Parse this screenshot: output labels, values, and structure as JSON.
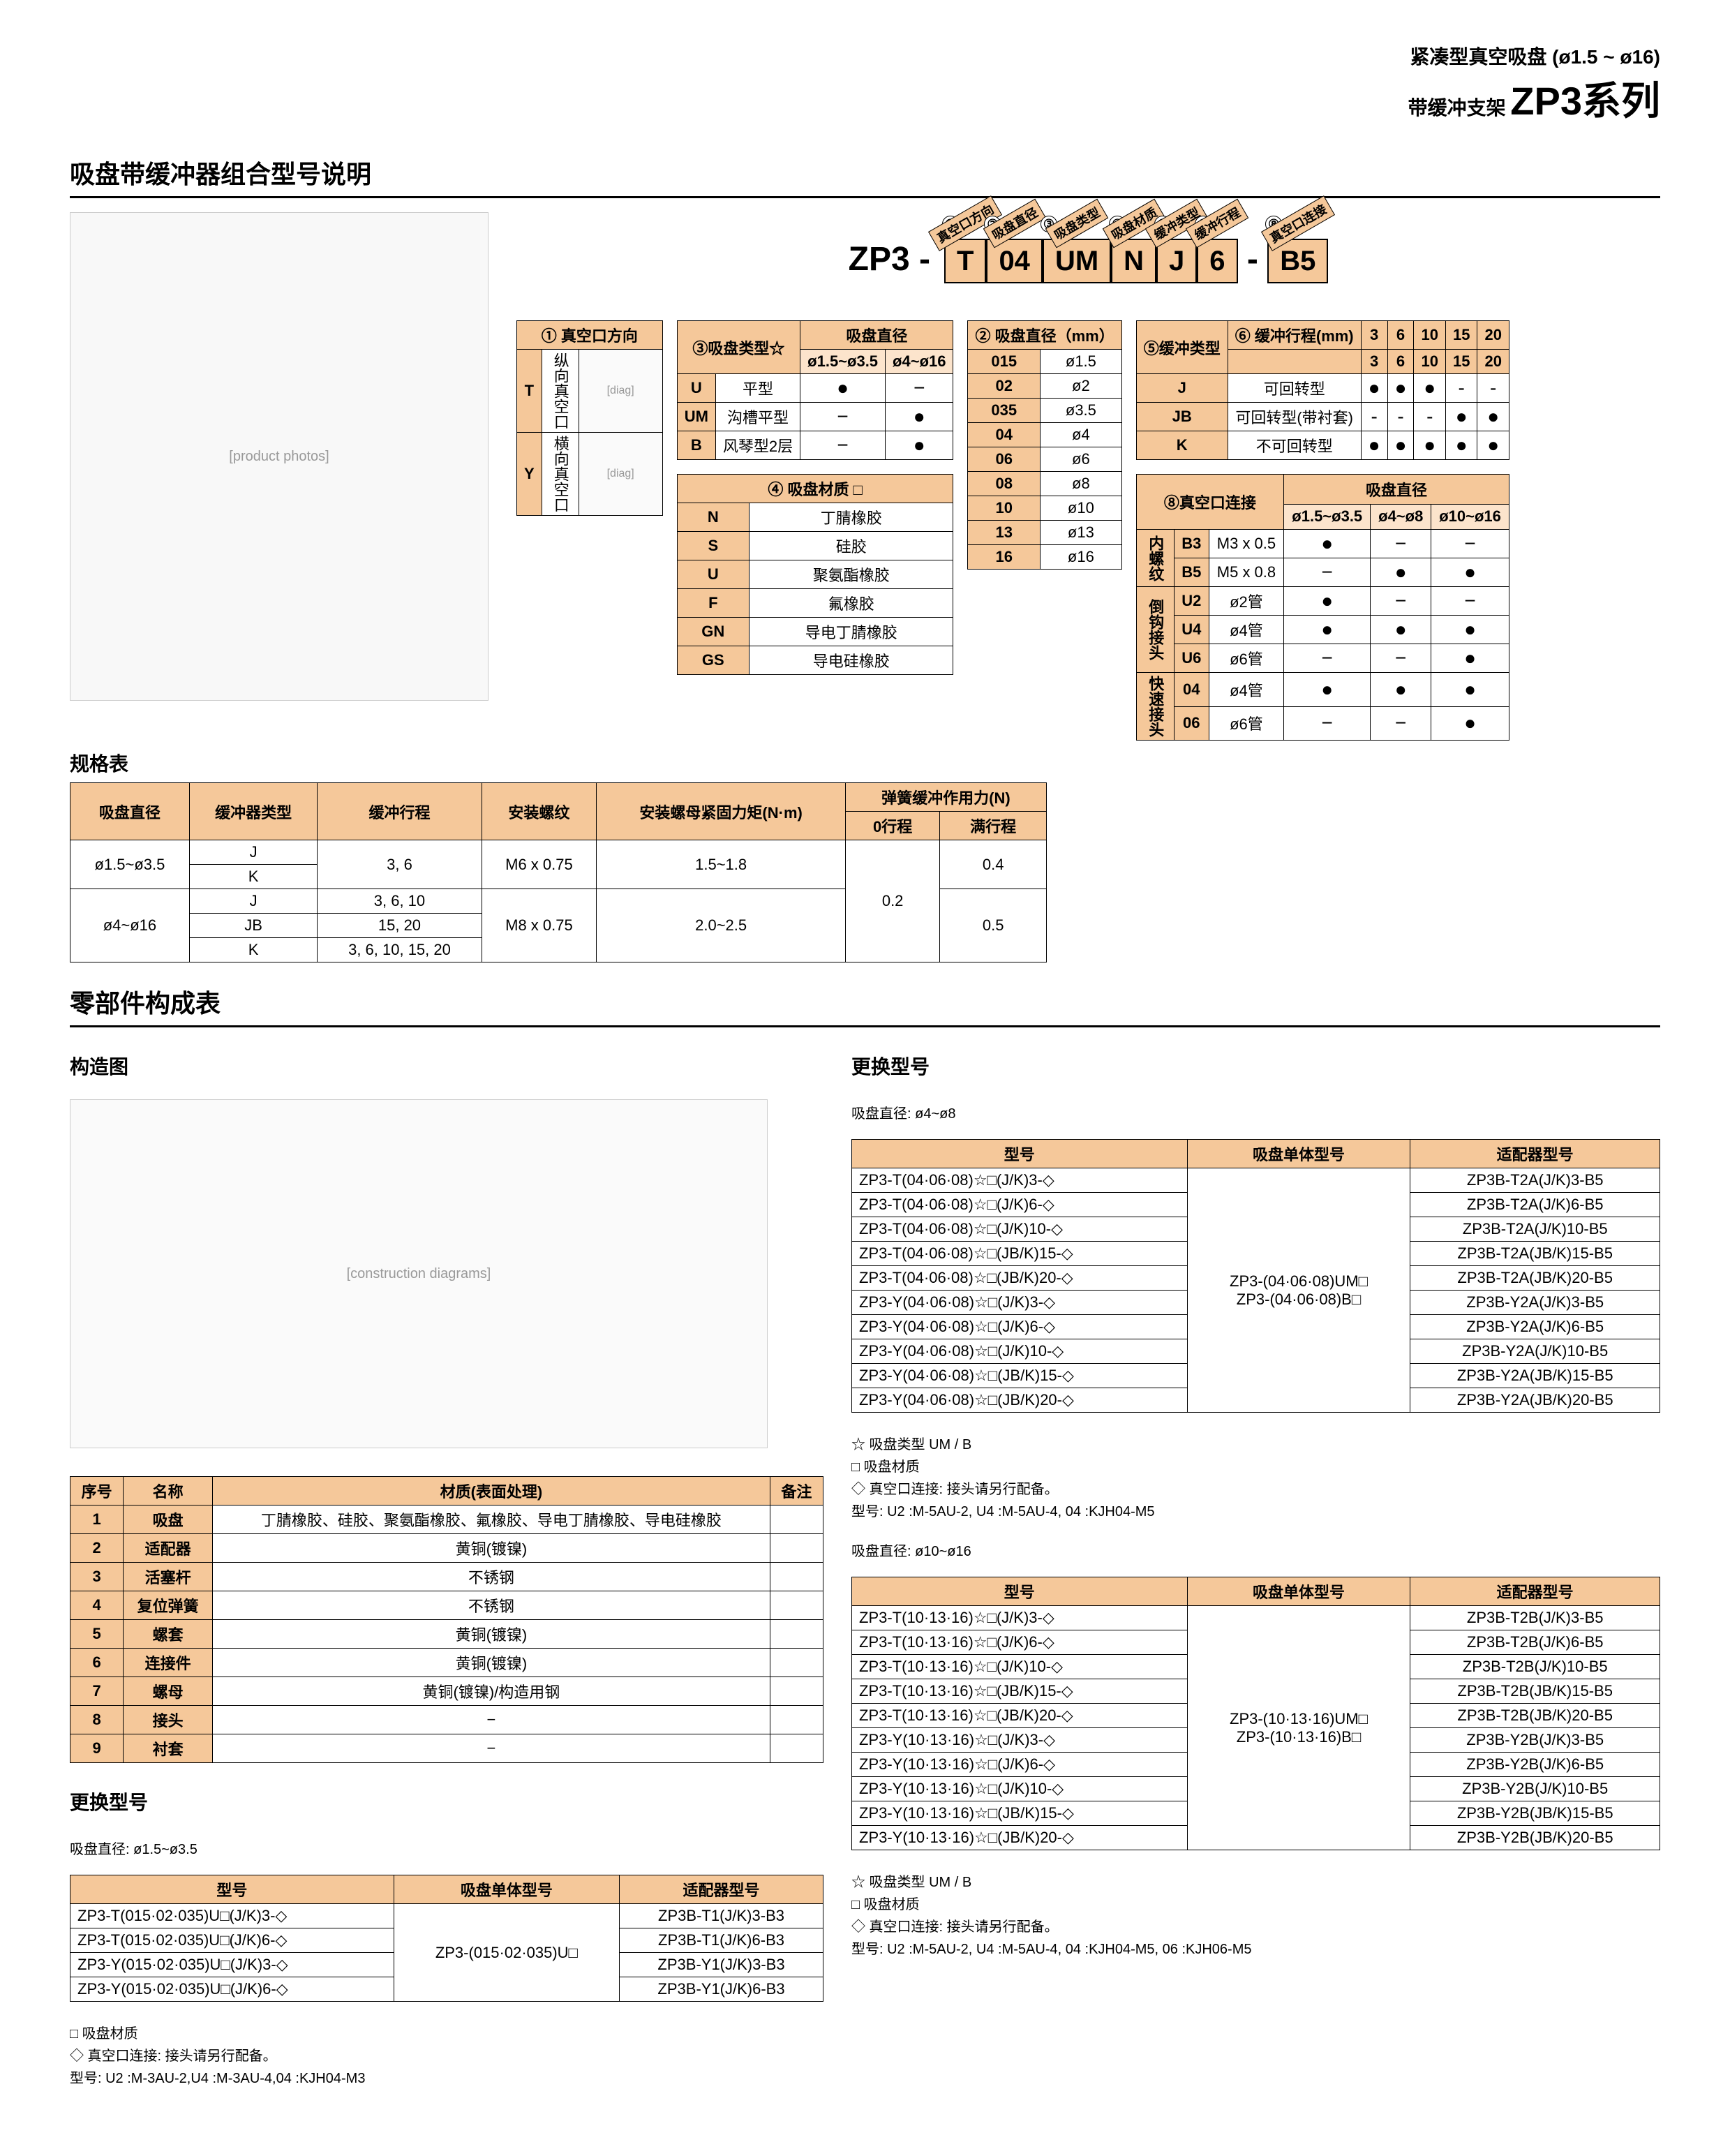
{
  "header": {
    "sub": "紧凑型真空吸盘 (ø1.5 ~ ø16)",
    "sub2": "带缓冲支架",
    "main": "ZP3系列"
  },
  "sec1": {
    "title": "吸盘带缓冲器组合型号说明"
  },
  "pn": {
    "prefix": "ZP3 -",
    "parts": [
      {
        "num": "①",
        "label": "真空口方向",
        "val": "T"
      },
      {
        "num": "②",
        "label": "吸盘直径",
        "val": "04"
      },
      {
        "num": "③",
        "label": "吸盘类型",
        "val": "UM"
      },
      {
        "num": "④",
        "label": "吸盘材质",
        "val": "N"
      },
      {
        "num": "⑤",
        "label": "缓冲类型",
        "val": "J"
      },
      {
        "num": "⑥",
        "label": "缓冲行程",
        "val": "6"
      },
      {
        "num": "⑧",
        "label": "真空口连接",
        "val": "B5"
      }
    ],
    "suffix": "-"
  },
  "t1": {
    "title": "① 真空口方向",
    "rows": [
      {
        "code": "T",
        "desc": "纵向真空口"
      },
      {
        "code": "Y",
        "desc": "横向真空口"
      }
    ]
  },
  "t3": {
    "title": "③吸盘类型☆",
    "cols": [
      "ø1.5~ø3.5",
      "ø4~ø16"
    ],
    "rows": [
      {
        "code": "U",
        "name": "平型",
        "v": [
          "●",
          "−"
        ]
      },
      {
        "code": "UM",
        "name": "沟槽平型",
        "v": [
          "−",
          "●"
        ]
      },
      {
        "code": "B",
        "name": "风琴型2层",
        "v": [
          "−",
          "●"
        ]
      }
    ]
  },
  "t4": {
    "title": "④ 吸盘材质 □",
    "rows": [
      {
        "code": "N",
        "name": "丁腈橡胶"
      },
      {
        "code": "S",
        "name": "硅胶"
      },
      {
        "code": "U",
        "name": "聚氨酯橡胶"
      },
      {
        "code": "F",
        "name": "氟橡胶"
      },
      {
        "code": "GN",
        "name": "导电丁腈橡胶"
      },
      {
        "code": "GS",
        "name": "导电硅橡胶"
      }
    ]
  },
  "t2": {
    "title": "② 吸盘直径（mm）",
    "rows": [
      {
        "code": "015",
        "val": "ø1.5"
      },
      {
        "code": "02",
        "val": "ø2"
      },
      {
        "code": "035",
        "val": "ø3.5"
      },
      {
        "code": "04",
        "val": "ø4"
      },
      {
        "code": "06",
        "val": "ø6"
      },
      {
        "code": "08",
        "val": "ø8"
      },
      {
        "code": "10",
        "val": "ø10"
      },
      {
        "code": "13",
        "val": "ø13"
      },
      {
        "code": "16",
        "val": "ø16"
      }
    ]
  },
  "t56": {
    "title5": "⑤缓冲类型",
    "title6": "⑥ 缓冲行程(mm)",
    "strokes": [
      "3",
      "6",
      "10",
      "15",
      "20"
    ],
    "rows": [
      {
        "code": "J",
        "name": "可回转型",
        "v": [
          "●",
          "●",
          "●",
          "-",
          "-"
        ]
      },
      {
        "code": "JB",
        "name": "可回转型(带衬套)",
        "v": [
          "-",
          "-",
          "-",
          "●",
          "●"
        ]
      },
      {
        "code": "K",
        "name": "不可回转型",
        "v": [
          "●",
          "●",
          "●",
          "●",
          "●"
        ]
      }
    ]
  },
  "t8": {
    "title": "⑧真空口连接",
    "cols": [
      "ø1.5~ø3.5",
      "ø4~ø8",
      "ø10~ø16"
    ],
    "groups": [
      {
        "g": "内螺纹",
        "rows": [
          {
            "code": "B3",
            "name": "M3 x 0.5",
            "v": [
              "●",
              "−",
              "−"
            ]
          },
          {
            "code": "B5",
            "name": "M5 x 0.8",
            "v": [
              "−",
              "●",
              "●"
            ]
          }
        ]
      },
      {
        "g": "倒钩接头",
        "rows": [
          {
            "code": "U2",
            "name": "ø2管",
            "v": [
              "●",
              "−",
              "−"
            ]
          },
          {
            "code": "U4",
            "name": "ø4管",
            "v": [
              "●",
              "●",
              "●"
            ]
          },
          {
            "code": "U6",
            "name": "ø6管",
            "v": [
              "−",
              "−",
              "●"
            ]
          }
        ]
      },
      {
        "g": "快速接头",
        "rows": [
          {
            "code": "04",
            "name": "ø4管",
            "v": [
              "●",
              "●",
              "●"
            ]
          },
          {
            "code": "06",
            "name": "ø6管",
            "v": [
              "−",
              "−",
              "●"
            ]
          }
        ]
      }
    ]
  },
  "spec": {
    "title": "规格表",
    "headers": [
      "吸盘直径",
      "缓冲器类型",
      "缓冲行程",
      "安装螺纹",
      "安装螺母紧固力矩(N·m)",
      "弹簧缓冲作用力(N) 0行程",
      "满行程"
    ],
    "rows": [
      {
        "dia": "ø1.5~ø3.5",
        "type": "J",
        "stroke": "3, 6",
        "thread": "M6 x 0.75",
        "torque": "1.5~1.8",
        "f0": "0.2",
        "ff": "0.4"
      },
      {
        "dia": "",
        "type": "K",
        "stroke": "",
        "thread": "",
        "torque": "",
        "f0": "",
        "ff": ""
      },
      {
        "dia": "ø4~ø16",
        "type": "J",
        "stroke": "3, 6, 10",
        "thread": "M8 x 0.75",
        "torque": "2.0~2.5",
        "f0": "",
        "ff": "0.5"
      },
      {
        "dia": "",
        "type": "JB",
        "stroke": "15, 20",
        "thread": "",
        "torque": "",
        "f0": "",
        "ff": ""
      },
      {
        "dia": "",
        "type": "K",
        "stroke": "3, 6, 10, 15, 20",
        "thread": "",
        "torque": "",
        "f0": "",
        "ff": ""
      }
    ]
  },
  "parts": {
    "title": "零部件构成表",
    "sub": "构造图",
    "headers": [
      "序号",
      "名称",
      "材质(表面处理)",
      "备注"
    ],
    "rows": [
      {
        "no": "1",
        "name": "吸盘",
        "mat": "丁腈橡胶、硅胶、聚氨酯橡胶、氟橡胶、导电丁腈橡胶、导电硅橡胶",
        "note": ""
      },
      {
        "no": "2",
        "name": "适配器",
        "mat": "黄铜(镀镍)",
        "note": ""
      },
      {
        "no": "3",
        "name": "活塞杆",
        "mat": "不锈钢",
        "note": ""
      },
      {
        "no": "4",
        "name": "复位弹簧",
        "mat": "不锈钢",
        "note": ""
      },
      {
        "no": "5",
        "name": "螺套",
        "mat": "黄铜(镀镍)",
        "note": ""
      },
      {
        "no": "6",
        "name": "连接件",
        "mat": "黄铜(镀镍)",
        "note": ""
      },
      {
        "no": "7",
        "name": "螺母",
        "mat": "黄铜(镀镍)/构造用钢",
        "note": ""
      },
      {
        "no": "8",
        "name": "接头",
        "mat": "−",
        "note": ""
      },
      {
        "no": "9",
        "name": "衬套",
        "mat": "−",
        "note": ""
      }
    ]
  },
  "repl1": {
    "title": "更换型号",
    "sub": "吸盘直径: ø1.5~ø3.5",
    "headers": [
      "型号",
      "吸盘单体型号",
      "适配器型号"
    ],
    "single": "ZP3-(015·02·035)U□",
    "rows": [
      {
        "m": "ZP3-T(015·02·035)U□(J/K)3-◇",
        "a": "ZP3B-T1(J/K)3-B3"
      },
      {
        "m": "ZP3-T(015·02·035)U□(J/K)6-◇",
        "a": "ZP3B-T1(J/K)6-B3"
      },
      {
        "m": "ZP3-Y(015·02·035)U□(J/K)3-◇",
        "a": "ZP3B-Y1(J/K)3-B3"
      },
      {
        "m": "ZP3-Y(015·02·035)U□(J/K)6-◇",
        "a": "ZP3B-Y1(J/K)6-B3"
      }
    ],
    "notes": [
      "□ 吸盘材质",
      "◇ 真空口连接: 接头请另行配备。",
      "型号: U2 :M-3AU-2,U4 :M-3AU-4,04 :KJH04-M3"
    ]
  },
  "repl2": {
    "title": "更换型号",
    "sub": "吸盘直径: ø4~ø8",
    "headers": [
      "型号",
      "吸盘单体型号",
      "适配器型号"
    ],
    "single": [
      "ZP3-(04·06·08)UM□",
      "ZP3-(04·06·08)B□"
    ],
    "rows": [
      {
        "m": "ZP3-T(04·06·08)☆□(J/K)3-◇",
        "a": "ZP3B-T2A(J/K)3-B5"
      },
      {
        "m": "ZP3-T(04·06·08)☆□(J/K)6-◇",
        "a": "ZP3B-T2A(J/K)6-B5"
      },
      {
        "m": "ZP3-T(04·06·08)☆□(J/K)10-◇",
        "a": "ZP3B-T2A(J/K)10-B5"
      },
      {
        "m": "ZP3-T(04·06·08)☆□(JB/K)15-◇",
        "a": "ZP3B-T2A(JB/K)15-B5"
      },
      {
        "m": "ZP3-T(04·06·08)☆□(JB/K)20-◇",
        "a": "ZP3B-T2A(JB/K)20-B5"
      },
      {
        "m": "ZP3-Y(04·06·08)☆□(J/K)3-◇",
        "a": "ZP3B-Y2A(J/K)3-B5"
      },
      {
        "m": "ZP3-Y(04·06·08)☆□(J/K)6-◇",
        "a": "ZP3B-Y2A(J/K)6-B5"
      },
      {
        "m": "ZP3-Y(04·06·08)☆□(J/K)10-◇",
        "a": "ZP3B-Y2A(J/K)10-B5"
      },
      {
        "m": "ZP3-Y(04·06·08)☆□(JB/K)15-◇",
        "a": "ZP3B-Y2A(JB/K)15-B5"
      },
      {
        "m": "ZP3-Y(04·06·08)☆□(JB/K)20-◇",
        "a": "ZP3B-Y2A(JB/K)20-B5"
      }
    ],
    "notes": [
      "☆ 吸盘类型 UM / B",
      "□ 吸盘材质",
      "◇ 真空口连接: 接头请另行配备。",
      "型号: U2 :M-5AU-2, U4 :M-5AU-4, 04 :KJH04-M5"
    ]
  },
  "repl3": {
    "sub": "吸盘直径: ø10~ø16",
    "headers": [
      "型号",
      "吸盘单体型号",
      "适配器型号"
    ],
    "single": [
      "ZP3-(10·13·16)UM□",
      "ZP3-(10·13·16)B□"
    ],
    "rows": [
      {
        "m": "ZP3-T(10·13·16)☆□(J/K)3-◇",
        "a": "ZP3B-T2B(J/K)3-B5"
      },
      {
        "m": "ZP3-T(10·13·16)☆□(J/K)6-◇",
        "a": "ZP3B-T2B(J/K)6-B5"
      },
      {
        "m": "ZP3-T(10·13·16)☆□(J/K)10-◇",
        "a": "ZP3B-T2B(J/K)10-B5"
      },
      {
        "m": "ZP3-T(10·13·16)☆□(JB/K)15-◇",
        "a": "ZP3B-T2B(JB/K)15-B5"
      },
      {
        "m": "ZP3-T(10·13·16)☆□(JB/K)20-◇",
        "a": "ZP3B-T2B(JB/K)20-B5"
      },
      {
        "m": "ZP3-Y(10·13·16)☆□(J/K)3-◇",
        "a": "ZP3B-Y2B(J/K)3-B5"
      },
      {
        "m": "ZP3-Y(10·13·16)☆□(J/K)6-◇",
        "a": "ZP3B-Y2B(J/K)6-B5"
      },
      {
        "m": "ZP3-Y(10·13·16)☆□(J/K)10-◇",
        "a": "ZP3B-Y2B(J/K)10-B5"
      },
      {
        "m": "ZP3-Y(10·13·16)☆□(JB/K)15-◇",
        "a": "ZP3B-Y2B(JB/K)15-B5"
      },
      {
        "m": "ZP3-Y(10·13·16)☆□(JB/K)20-◇",
        "a": "ZP3B-Y2B(JB/K)20-B5"
      }
    ],
    "notes": [
      "☆ 吸盘类型 UM / B",
      "□ 吸盘材质",
      "◇ 真空口连接: 接头请另行配备。",
      "型号: U2 :M-5AU-2, U4 :M-5AU-4, 04 :KJH04-M5, 06 :KJH06-M5"
    ]
  }
}
